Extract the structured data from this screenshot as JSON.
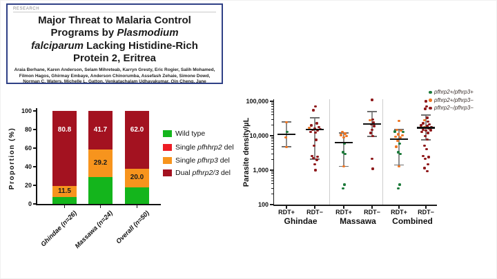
{
  "paper_card": {
    "kicker": "RESEARCH",
    "title_lines": [
      "Major Threat to Malaria Control",
      "Programs by *Plasmodium*",
      "*falciparum* Lacking Histidine-Rich",
      "Protein 2, Eritrea"
    ],
    "authors": "Araia Berhane, Karen Anderson, Selam Mihreteab, Karryn Gresty, Eric Rogier, Salih Mohamed, Filmon Hagos, Ghirmay Embaye, Anderson Chinorumba, Assefash Zehaie, Simone Dowd, Norman C. Waters, Michelle L. Gatton, Venkatachalam Udhayakumar, Qin Cheng, Jane Cunningham"
  },
  "chart_data": [
    {
      "type": "bar",
      "title": "",
      "ylabel": "Proportion (%)",
      "ylim": [
        0,
        100
      ],
      "yticks": [
        0,
        20,
        40,
        60,
        80,
        100
      ],
      "categories": [
        "Ghindae (n=26)",
        "Massawa (n=24)",
        "Overall (n=50)"
      ],
      "series": [
        {
          "name": "Wild type",
          "color": "#14b51c",
          "values": [
            7.7,
            29.1,
            18.0
          ]
        },
        {
          "name": "Single *pfhhrp2* del",
          "color": "#ed1c24",
          "values": [
            0,
            0,
            0
          ]
        },
        {
          "name": "Single *pfhrp3* del",
          "color": "#f7941d",
          "values": [
            11.5,
            29.2,
            20.0
          ]
        },
        {
          "name": "Dual *pfhrp2/3* del",
          "color": "#a31220",
          "values": [
            80.8,
            41.7,
            62.0
          ]
        }
      ],
      "segment_labels": {
        "pfhrp3": [
          "11.5",
          "29.2",
          "20.0"
        ],
        "dual": [
          "80.8",
          "41.7",
          "62.0"
        ]
      },
      "legend_position": "right"
    },
    {
      "type": "scatter",
      "ylabel": "Parasite density/µL",
      "yscale": "log",
      "ylim": [
        100,
        100000
      ],
      "ytick_labels": [
        "100",
        "1,000",
        "10,000",
        "100,000"
      ],
      "point_colors": {
        "g": "#1d7a3b",
        "o": "#ee7623",
        "r": "#8f191b"
      },
      "legend": [
        {
          "label": "pfhrp2+/pfhrp3+",
          "color": "#1d7a3b"
        },
        {
          "label": "pfhrp2+/pfhrp3−",
          "color": "#ee7623"
        },
        {
          "label": "pfhrp2−/pfhrp3−",
          "color": "#8f191b"
        }
      ],
      "groups": [
        {
          "name": "Ghindae",
          "columns": [
            {
              "label": "RDT+",
              "median": 11000,
              "upper_whisker": 25000,
              "lower_whisker": 4800,
              "points": [
                [
                  25000,
                  "o",
                  0
                ],
                [
                  13000,
                  "g",
                  1
                ],
                [
                  9000,
                  "o",
                  -1
                ],
                [
                  4700,
                  "o",
                  0
                ]
              ]
            },
            {
              "label": "RDT−",
              "median": 15000,
              "upper_whisker": 33000,
              "lower_whisker": 2100,
              "points": [
                [
                  70000,
                  "r",
                  1
                ],
                [
                  55000,
                  "r",
                  -2
                ],
                [
                  23000,
                  "r",
                  3
                ],
                [
                  20000,
                  "r",
                  -5
                ],
                [
                  18000,
                  "r",
                  6
                ],
                [
                  17000,
                  "o",
                  -8
                ],
                [
                  16000,
                  "r",
                  0
                ],
                [
                  15500,
                  "r",
                  8
                ],
                [
                  15000,
                  "r",
                  -3
                ],
                [
                  14000,
                  "r",
                  4
                ],
                [
                  13000,
                  "r",
                  -6
                ],
                [
                  12500,
                  "r",
                  1
                ],
                [
                  7600,
                  "r",
                  2
                ],
                [
                  5200,
                  "r",
                  -1
                ],
                [
                  2600,
                  "r",
                  -4
                ],
                [
                  2500,
                  "r",
                  4
                ],
                [
                  2200,
                  "r",
                  -2
                ],
                [
                  2000,
                  "r",
                  3
                ],
                [
                  1500,
                  "r",
                  0
                ],
                [
                  1000,
                  "r",
                  1
                ]
              ]
            }
          ]
        },
        {
          "name": "Massawa",
          "columns": [
            {
              "label": "RDT+",
              "median": 6300,
              "upper_whisker": 12000,
              "lower_whisker": 1300,
              "points": [
                [
                  13000,
                  "o",
                  -2
                ],
                [
                  11500,
                  "o",
                  2
                ],
                [
                  10500,
                  "o",
                  -4
                ],
                [
                  9800,
                  "o",
                  4
                ],
                [
                  9000,
                  "o",
                  0
                ],
                [
                  5800,
                  "g",
                  1
                ],
                [
                  3300,
                  "g",
                  -1
                ],
                [
                  3000,
                  "g",
                  2
                ],
                [
                  1300,
                  "o",
                  0
                ],
                [
                  380,
                  "g",
                  1
                ],
                [
                  290,
                  "g",
                  -1
                ]
              ]
            },
            {
              "label": "RDT−",
              "median": 22000,
              "upper_whisker": 50000,
              "lower_whisker": 9500,
              "points": [
                [
                  110000,
                  "r",
                  0
                ],
                [
                  30000,
                  "r",
                  1
                ],
                [
                  28000,
                  "o",
                  -3
                ],
                [
                  24000,
                  "r",
                  2
                ],
                [
                  21000,
                  "r",
                  -1
                ],
                [
                  19000,
                  "r",
                  3
                ],
                [
                  15000,
                  "r",
                  0
                ],
                [
                  12000,
                  "r",
                  -2
                ],
                [
                  9700,
                  "r",
                  1
                ],
                [
                  2100,
                  "r",
                  0
                ],
                [
                  1100,
                  "r",
                  1
                ]
              ]
            }
          ]
        },
        {
          "name": "Combined",
          "columns": [
            {
              "label": "RDT+",
              "median": 8000,
              "upper_whisker": 15000,
              "lower_whisker": 1400,
              "points": [
                [
                  27000,
                  "o",
                  0
                ],
                [
                  15000,
                  "o",
                  -3
                ],
                [
                  14000,
                  "o",
                  3
                ],
                [
                  13200,
                  "g",
                  -6
                ],
                [
                  12800,
                  "g",
                  6
                ],
                [
                  11000,
                  "o",
                  -1
                ],
                [
                  10200,
                  "o",
                  5
                ],
                [
                  9500,
                  "o",
                  -5
                ],
                [
                  8800,
                  "o",
                  2
                ],
                [
                  7200,
                  "o",
                  -2
                ],
                [
                  5800,
                  "g",
                  1
                ],
                [
                  4800,
                  "o",
                  -4
                ],
                [
                  3300,
                  "g",
                  -1
                ],
                [
                  3000,
                  "g",
                  2
                ],
                [
                  1300,
                  "o",
                  0
                ],
                [
                  380,
                  "g",
                  1
                ],
                [
                  290,
                  "g",
                  -1
                ]
              ]
            },
            {
              "label": "RDT−",
              "median": 17000,
              "upper_whisker": 40000,
              "lower_whisker": 7600,
              "points": [
                [
                  100000,
                  "r",
                  0
                ],
                [
                  72000,
                  "r",
                  1
                ],
                [
                  60000,
                  "r",
                  -1
                ],
                [
                  33000,
                  "r",
                  2
                ],
                [
                  28000,
                  "o",
                  -2
                ],
                [
                  26000,
                  "r",
                  3
                ],
                [
                  23000,
                  "r",
                  -4
                ],
                [
                  21000,
                  "r",
                  5
                ],
                [
                  20000,
                  "r",
                  -7
                ],
                [
                  19000,
                  "r",
                  2
                ],
                [
                  18000,
                  "r",
                  8
                ],
                [
                  17500,
                  "o",
                  -2
                ],
                [
                  17000,
                  "r",
                  -9
                ],
                [
                  16000,
                  "r",
                  4
                ],
                [
                  15000,
                  "r",
                  -4
                ],
                [
                  14500,
                  "r",
                  7
                ],
                [
                  14000,
                  "r",
                  0
                ],
                [
                  13000,
                  "r",
                  -6
                ],
                [
                  12000,
                  "r",
                  3
                ],
                [
                  9700,
                  "r",
                  -1
                ],
                [
                  7700,
                  "r",
                  2
                ],
                [
                  5200,
                  "r",
                  -2
                ],
                [
                  4100,
                  "r",
                  1
                ],
                [
                  2600,
                  "r",
                  -4
                ],
                [
                  2400,
                  "r",
                  4
                ],
                [
                  2100,
                  "r",
                  -1
                ],
                [
                  1500,
                  "r",
                  3
                ],
                [
                  1150,
                  "r",
                  -2
                ],
                [
                  950,
                  "r",
                  2
                ]
              ]
            }
          ]
        }
      ]
    }
  ]
}
